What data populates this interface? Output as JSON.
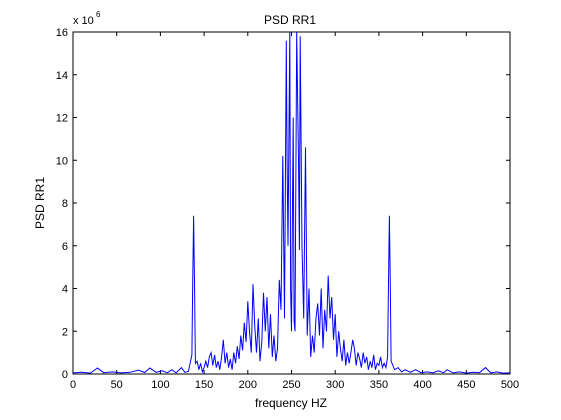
{
  "chart_data": {
    "type": "line",
    "title": "PSD RR1",
    "xlabel": "frequency HZ",
    "ylabel": "PSD RR1",
    "y_exponent_label": "x 10",
    "y_exponent_power": "6",
    "xlim": [
      0,
      500
    ],
    "ylim": [
      0,
      16
    ],
    "xticks": [
      0,
      50,
      100,
      150,
      200,
      250,
      300,
      350,
      400,
      450,
      500
    ],
    "yticks": [
      0,
      2,
      4,
      6,
      8,
      10,
      12,
      14,
      16
    ],
    "grid": false,
    "line_color": "#0000ff",
    "series": [
      {
        "values_unit": "x 10^6",
        "points": [
          [
            0,
            0.05
          ],
          [
            10,
            0.08
          ],
          [
            20,
            0.04
          ],
          [
            28,
            0.28
          ],
          [
            35,
            0.06
          ],
          [
            45,
            0.1
          ],
          [
            55,
            0.05
          ],
          [
            65,
            0.08
          ],
          [
            75,
            0.18
          ],
          [
            82,
            0.07
          ],
          [
            88,
            0.28
          ],
          [
            95,
            0.08
          ],
          [
            102,
            0.15
          ],
          [
            108,
            0.06
          ],
          [
            113,
            0.2
          ],
          [
            118,
            0.05
          ],
          [
            124,
            0.3
          ],
          [
            128,
            0.08
          ],
          [
            132,
            0.12
          ],
          [
            136,
            0.9
          ],
          [
            137,
            4.2
          ],
          [
            138,
            7.4
          ],
          [
            139,
            4.3
          ],
          [
            140,
            0.5
          ],
          [
            142,
            0.6
          ],
          [
            144,
            0.2
          ],
          [
            146,
            0.5
          ],
          [
            148,
            0.1
          ],
          [
            150,
            0.3
          ],
          [
            152,
            0.6
          ],
          [
            154,
            0.3
          ],
          [
            156,
            0.8
          ],
          [
            158,
            1.0
          ],
          [
            160,
            0.4
          ],
          [
            162,
            0.9
          ],
          [
            164,
            0.3
          ],
          [
            166,
            0.6
          ],
          [
            168,
            0.2
          ],
          [
            170,
            0.8
          ],
          [
            172,
            1.6
          ],
          [
            174,
            0.5
          ],
          [
            176,
            1.0
          ],
          [
            178,
            0.3
          ],
          [
            180,
            0.7
          ],
          [
            182,
            0.2
          ],
          [
            184,
            1.0
          ],
          [
            186,
            0.5
          ],
          [
            188,
            1.3
          ],
          [
            190,
            0.7
          ],
          [
            192,
            1.8
          ],
          [
            194,
            1.1
          ],
          [
            196,
            2.4
          ],
          [
            198,
            1.5
          ],
          [
            200,
            3.4
          ],
          [
            202,
            2.0
          ],
          [
            204,
            1.0
          ],
          [
            206,
            4.2
          ],
          [
            208,
            2.2
          ],
          [
            210,
            1.0
          ],
          [
            212,
            2.6
          ],
          [
            214,
            0.6
          ],
          [
            216,
            1.5
          ],
          [
            218,
            3.8
          ],
          [
            220,
            2.0
          ],
          [
            222,
            3.6
          ],
          [
            224,
            1.2
          ],
          [
            226,
            2.8
          ],
          [
            228,
            0.8
          ],
          [
            230,
            1.8
          ],
          [
            232,
            0.6
          ],
          [
            234,
            1.2
          ],
          [
            236,
            4.4
          ],
          [
            238,
            3.0
          ],
          [
            240,
            10.2
          ],
          [
            242,
            2.6
          ],
          [
            244,
            15.6
          ],
          [
            245,
            10.0
          ],
          [
            246,
            6.0
          ],
          [
            248,
            16.4
          ],
          [
            249,
            4.0
          ],
          [
            250,
            2.0
          ],
          [
            252,
            12.0
          ],
          [
            253,
            2.5
          ],
          [
            254,
            2.0
          ],
          [
            256,
            16.2
          ],
          [
            258,
            10.0
          ],
          [
            259,
            5.8
          ],
          [
            260,
            15.8
          ],
          [
            262,
            6.0
          ],
          [
            264,
            2.6
          ],
          [
            266,
            10.6
          ],
          [
            268,
            1.8
          ],
          [
            270,
            4.0
          ],
          [
            272,
            0.8
          ],
          [
            274,
            1.8
          ],
          [
            276,
            1.0
          ],
          [
            278,
            2.6
          ],
          [
            280,
            3.3
          ],
          [
            282,
            1.8
          ],
          [
            284,
            4.0
          ],
          [
            286,
            1.2
          ],
          [
            288,
            3.0
          ],
          [
            290,
            2.0
          ],
          [
            292,
            4.6
          ],
          [
            294,
            2.6
          ],
          [
            296,
            3.6
          ],
          [
            298,
            1.6
          ],
          [
            300,
            2.8
          ],
          [
            302,
            0.8
          ],
          [
            304,
            2.0
          ],
          [
            306,
            1.2
          ],
          [
            308,
            0.6
          ],
          [
            310,
            1.6
          ],
          [
            312,
            0.4
          ],
          [
            314,
            1.0
          ],
          [
            316,
            0.5
          ],
          [
            318,
            1.0
          ],
          [
            320,
            1.6
          ],
          [
            322,
            1.2
          ],
          [
            324,
            0.4
          ],
          [
            326,
            1.0
          ],
          [
            328,
            0.7
          ],
          [
            330,
            0.3
          ],
          [
            332,
            1.0
          ],
          [
            334,
            0.5
          ],
          [
            336,
            0.8
          ],
          [
            338,
            0.2
          ],
          [
            340,
            0.6
          ],
          [
            342,
            0.3
          ],
          [
            344,
            0.9
          ],
          [
            346,
            0.2
          ],
          [
            348,
            0.5
          ],
          [
            350,
            0.4
          ],
          [
            352,
            0.8
          ],
          [
            354,
            0.3
          ],
          [
            356,
            0.5
          ],
          [
            358,
            0.3
          ],
          [
            360,
            0.8
          ],
          [
            361,
            4.3
          ],
          [
            362,
            7.4
          ],
          [
            363,
            4.2
          ],
          [
            364,
            0.6
          ],
          [
            368,
            0.2
          ],
          [
            372,
            0.3
          ],
          [
            376,
            0.1
          ],
          [
            380,
            0.2
          ],
          [
            386,
            0.08
          ],
          [
            392,
            0.2
          ],
          [
            398,
            0.06
          ],
          [
            405,
            0.1
          ],
          [
            412,
            0.05
          ],
          [
            418,
            0.15
          ],
          [
            424,
            0.06
          ],
          [
            428,
            0.2
          ],
          [
            435,
            0.05
          ],
          [
            442,
            0.1
          ],
          [
            450,
            0.04
          ],
          [
            458,
            0.08
          ],
          [
            465,
            0.06
          ],
          [
            472,
            0.3
          ],
          [
            478,
            0.05
          ],
          [
            485,
            0.1
          ],
          [
            492,
            0.04
          ],
          [
            500,
            0.05
          ]
        ]
      }
    ]
  }
}
